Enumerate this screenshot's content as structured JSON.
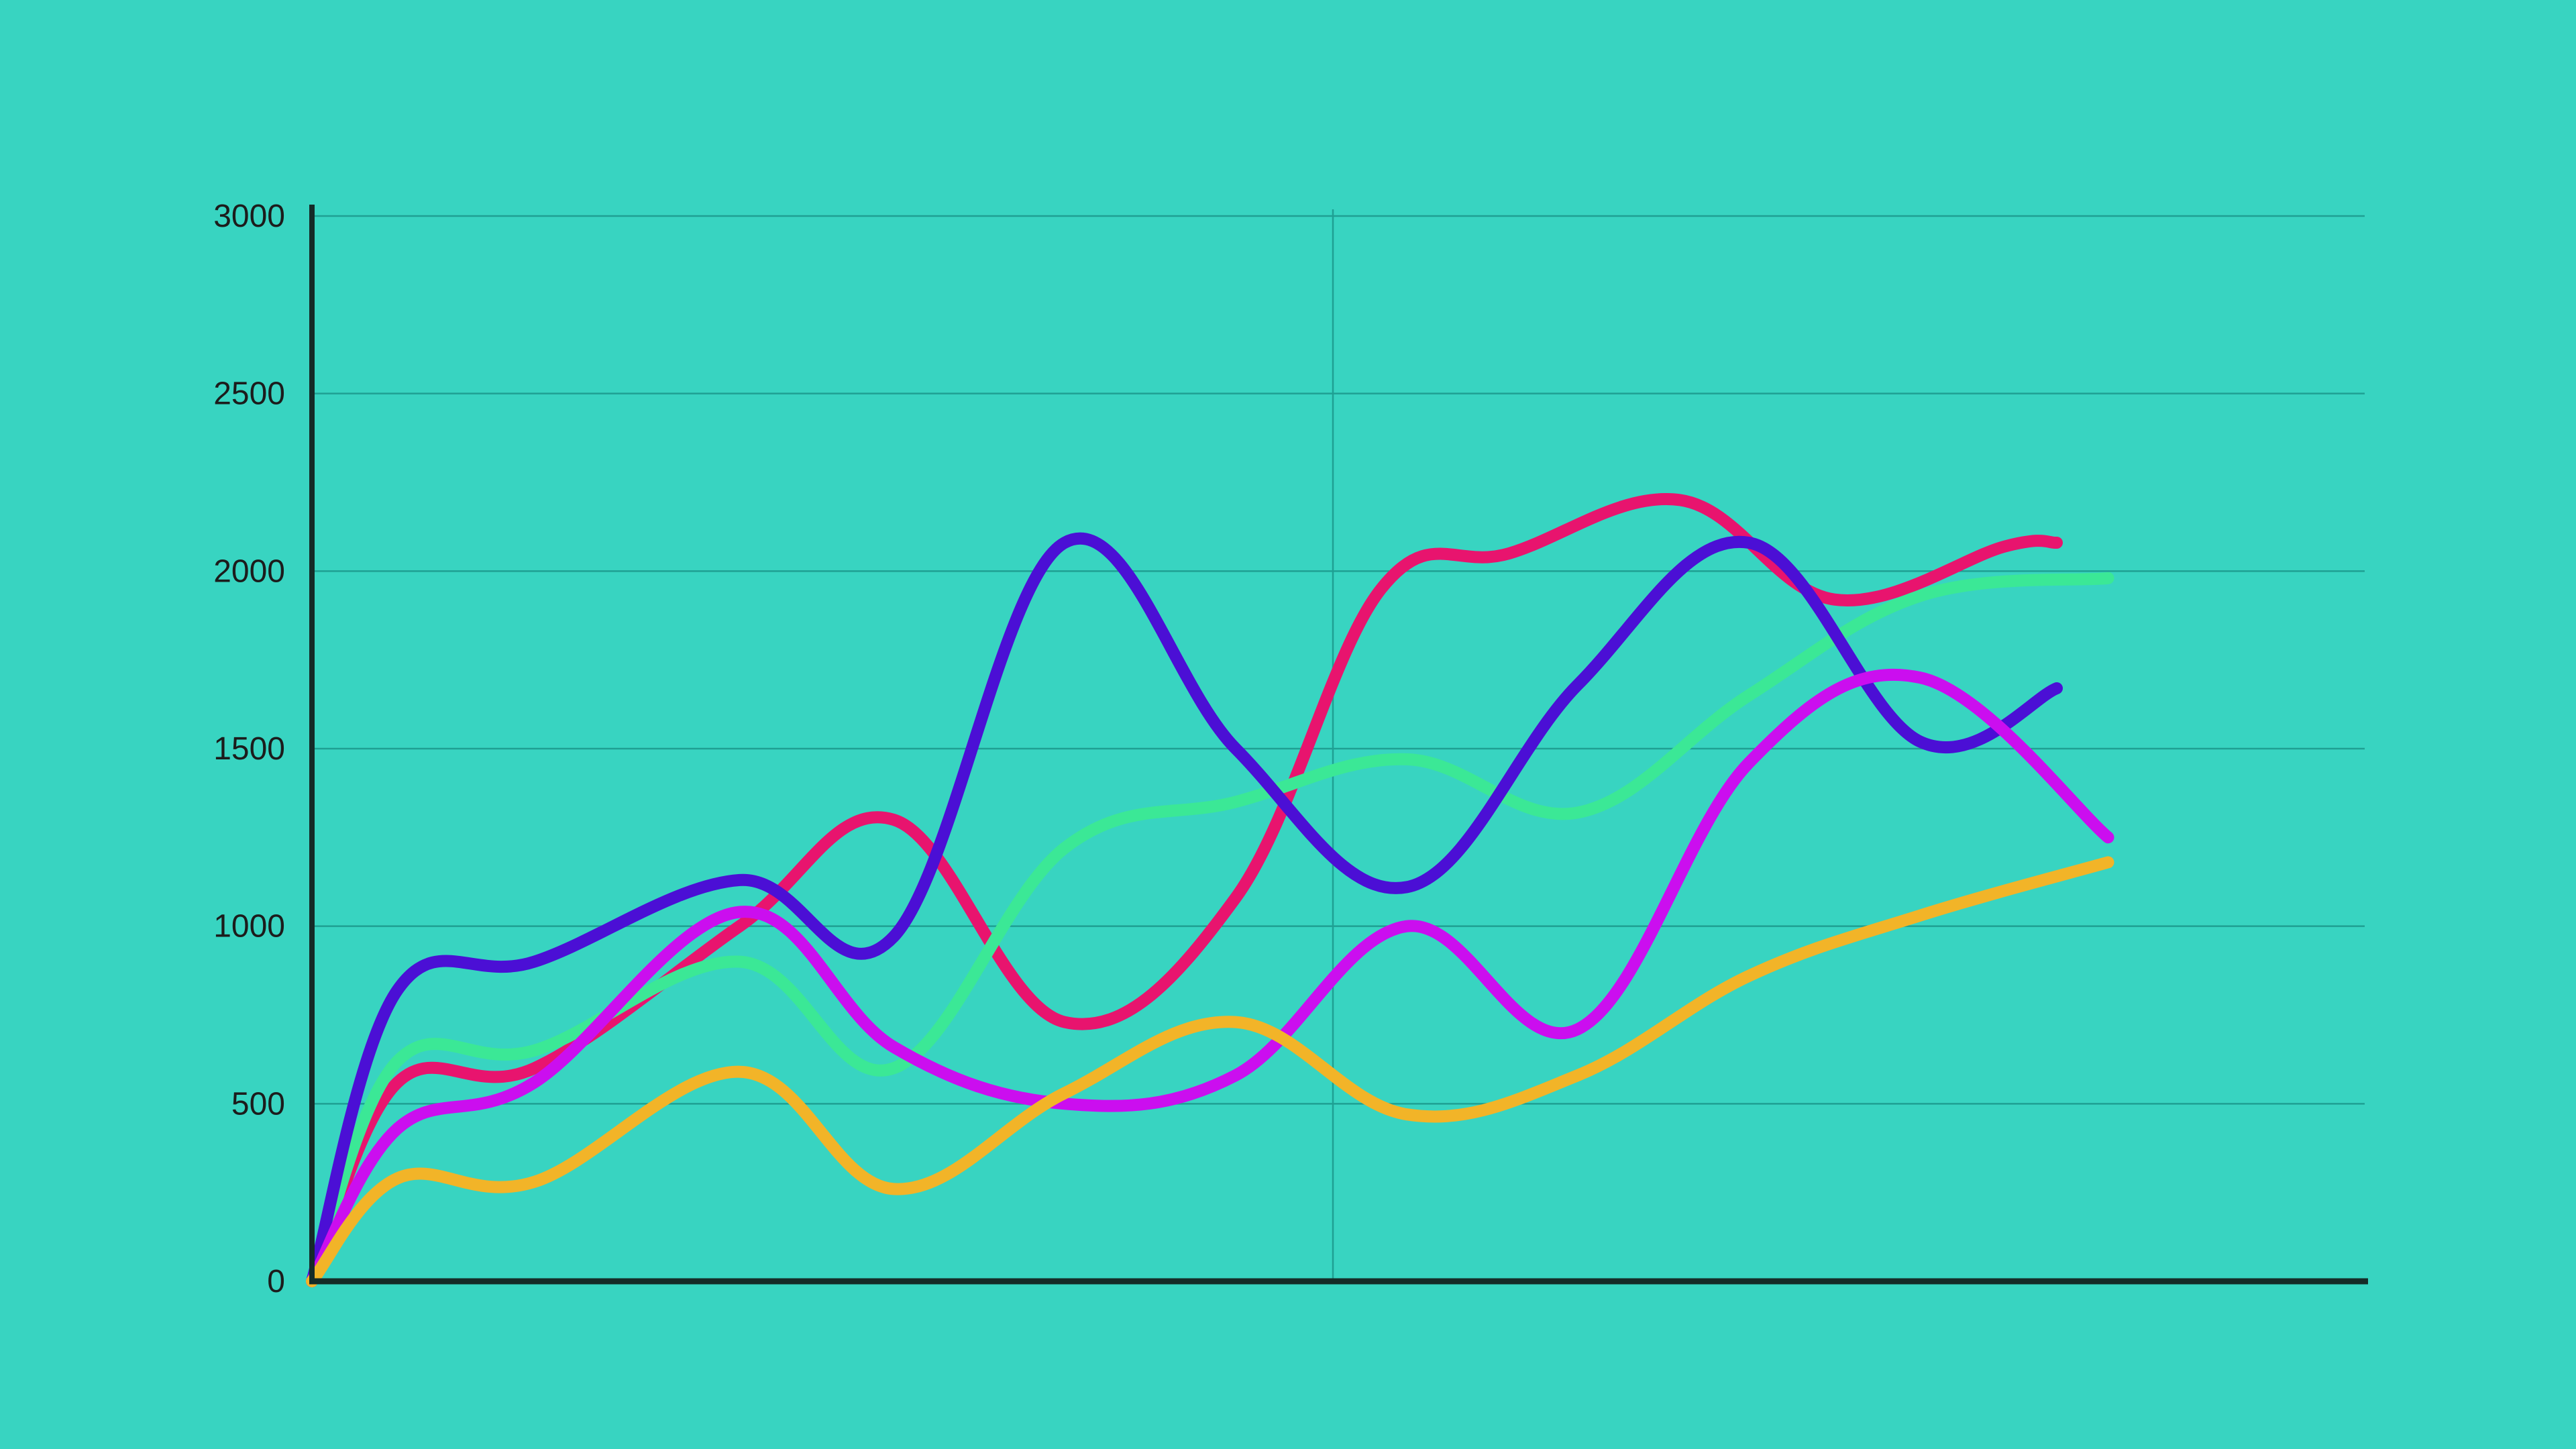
{
  "colors": {
    "background": "#38d4c1",
    "axis": "#152b28",
    "grid": "#1fa093"
  },
  "chart_data": {
    "type": "line",
    "title": "",
    "xlabel": "",
    "ylabel": "",
    "ylim": [
      0,
      3000
    ],
    "xlim": [
      0,
      12
    ],
    "y_ticks": [
      0,
      500,
      1000,
      1500,
      2000,
      2500,
      3000
    ],
    "y_tick_labels": [
      "0",
      "500",
      "1000",
      "1500",
      "2000",
      "2500",
      "3000"
    ],
    "grid": "horizontal",
    "legend": "none",
    "series": [
      {
        "color": "#e8146e",
        "x": [
          0,
          0.5,
          1.3,
          2.5,
          3.4,
          4.4,
          5.4,
          6.25,
          7.0,
          8.0,
          8.9,
          9.9,
          10.2
        ],
        "values": [
          0,
          560,
          600,
          1000,
          1300,
          730,
          1080,
          1950,
          2050,
          2200,
          1920,
          2070,
          2080
        ]
      },
      {
        "color": "#3be896",
        "x": [
          0,
          0.5,
          1.3,
          2.5,
          3.4,
          4.4,
          5.4,
          6.4,
          7.4,
          8.4,
          9.4,
          10.5
        ],
        "values": [
          0,
          620,
          650,
          900,
          600,
          1220,
          1350,
          1470,
          1320,
          1650,
          1930,
          1980
        ]
      },
      {
        "color": "#4b0fd5",
        "x": [
          0,
          0.5,
          1.3,
          2.5,
          3.4,
          4.4,
          5.4,
          6.4,
          7.4,
          8.4,
          9.4,
          10.2
        ],
        "values": [
          0,
          820,
          900,
          1130,
          970,
          2080,
          1500,
          1110,
          1680,
          2080,
          1520,
          1670
        ]
      },
      {
        "color": "#cb0eef",
        "x": [
          0,
          0.5,
          1.3,
          2.5,
          3.4,
          4.4,
          5.4,
          6.4,
          7.4,
          8.4,
          9.4,
          10.5
        ],
        "values": [
          0,
          430,
          560,
          1040,
          660,
          500,
          580,
          1000,
          710,
          1460,
          1700,
          1250
        ]
      },
      {
        "color": "#f2b428",
        "x": [
          0,
          0.5,
          1.3,
          2.5,
          3.4,
          4.4,
          5.4,
          6.4,
          7.4,
          8.4,
          9.4,
          10.5
        ],
        "values": [
          0,
          290,
          280,
          590,
          260,
          530,
          730,
          470,
          580,
          860,
          1030,
          1180
        ]
      }
    ]
  }
}
